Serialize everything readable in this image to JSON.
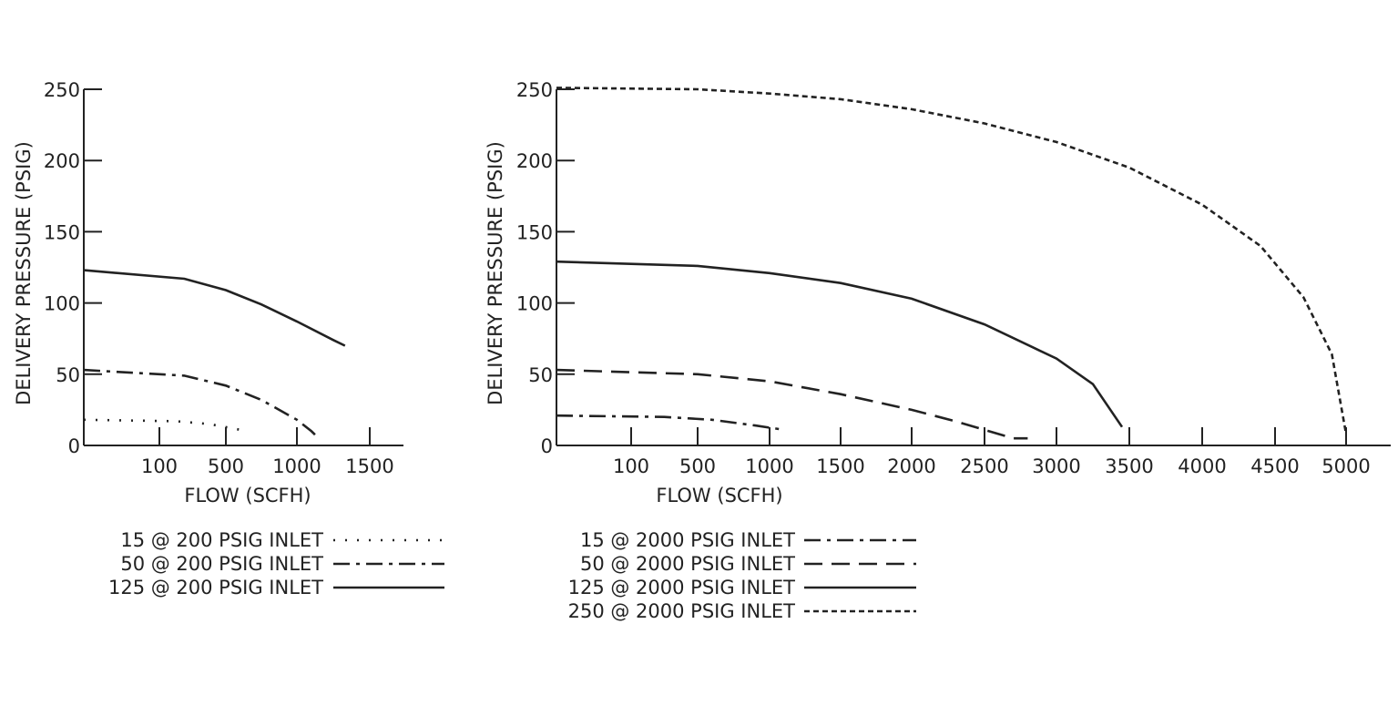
{
  "chart_data": [
    {
      "type": "line",
      "xlabel": "FLOW (SCFH)",
      "ylabel": "DELIVERY PRESSURE (PSIG)",
      "ylim": [
        0,
        250
      ],
      "xlim": [
        0,
        1750
      ],
      "xticks": [
        "100",
        "500",
        "1000",
        "1500"
      ],
      "yticks": [
        "0",
        "50",
        "100",
        "150",
        "200",
        "250"
      ],
      "grid": false,
      "legend": "bottom",
      "series": [
        {
          "name": "15 @ 200 PSIG INLET",
          "style": "dotted",
          "x": [
            0,
            200,
            400,
            600
          ],
          "y": [
            18,
            17,
            15,
            11
          ]
        },
        {
          "name": "50 @ 200 PSIG INLET",
          "style": "dash-dot",
          "x": [
            0,
            250,
            500,
            750,
            1000,
            1100,
            1150
          ],
          "y": [
            53,
            49,
            42,
            32,
            18,
            10,
            5
          ]
        },
        {
          "name": "125 @ 200 PSIG INLET",
          "style": "solid",
          "x": [
            0,
            250,
            500,
            750,
            1000,
            1250,
            1330
          ],
          "y": [
            123,
            117,
            109,
            99,
            87,
            74,
            70
          ]
        }
      ]
    },
    {
      "type": "line",
      "xlabel": "FLOW (SCFH)",
      "ylabel": "DELIVERY PRESSURE (PSIG)",
      "ylim": [
        0,
        250
      ],
      "xlim": [
        0,
        5500
      ],
      "xticks": [
        "100",
        "500",
        "1000",
        "1500",
        "2000",
        "2500",
        "3000",
        "3500",
        "4000",
        "4500",
        "5000"
      ],
      "yticks": [
        "0",
        "50",
        "100",
        "150",
        "200",
        "250"
      ],
      "grid": false,
      "legend": "bottom",
      "series": [
        {
          "name": "15 @ 2000 PSIG INLET",
          "style": "dash-dot",
          "x": [
            0,
            300,
            600,
            900,
            1100
          ],
          "y": [
            21,
            20,
            18,
            14,
            11
          ]
        },
        {
          "name": "50 @ 2000 PSIG INLET",
          "style": "dashed",
          "x": [
            0,
            500,
            1000,
            1500,
            2000,
            2300,
            2700,
            2800
          ],
          "y": [
            53,
            50,
            45,
            36,
            25,
            17,
            5,
            5
          ]
        },
        {
          "name": "125 @ 2000 PSIG INLET",
          "style": "solid",
          "x": [
            0,
            500,
            1000,
            1500,
            2000,
            2500,
            3000,
            3250,
            3450
          ],
          "y": [
            129,
            126,
            121,
            114,
            103,
            85,
            61,
            43,
            13
          ]
        },
        {
          "name": "250 @ 2000 PSIG INLET",
          "style": "short-dash",
          "x": [
            0,
            500,
            1000,
            1500,
            2000,
            2500,
            3000,
            3500,
            4000,
            4400,
            4700,
            4900,
            5000
          ],
          "y": [
            251,
            250,
            247,
            243,
            236,
            226,
            213,
            195,
            169,
            140,
            104,
            64,
            8
          ]
        }
      ]
    }
  ]
}
